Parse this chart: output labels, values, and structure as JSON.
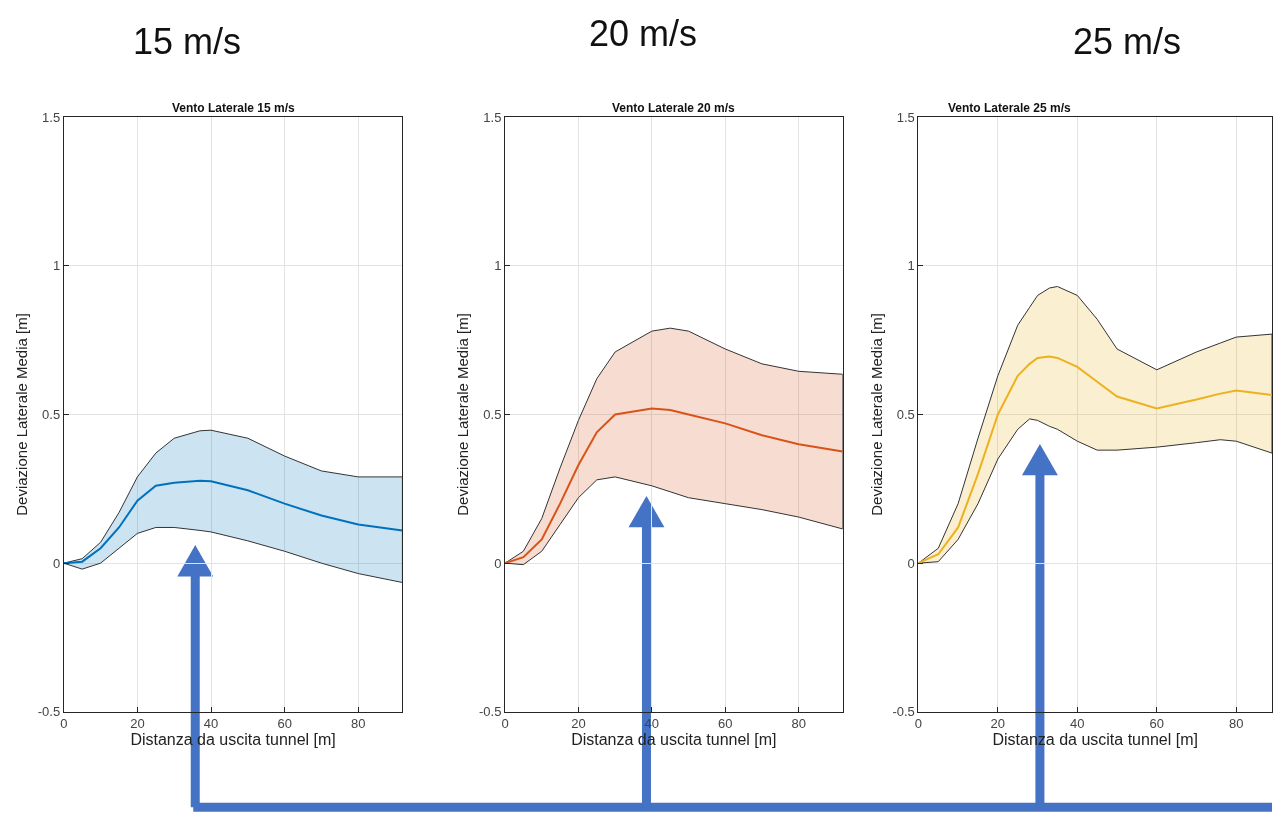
{
  "chart_data": [
    {
      "type": "line",
      "title": "Vento Laterale 15 m/s",
      "annotations": [
        "15 m/s"
      ],
      "xlabel": "Distanza da uscita tunnel [m]",
      "ylabel": "Deviazione Laterale Media [m]",
      "x": [
        0,
        5,
        10,
        15,
        20,
        25,
        30,
        37,
        40,
        50,
        60,
        70,
        80,
        92
      ],
      "series": [
        {
          "color": "#0072bd",
          "values": [
            0,
            0.005,
            0.05,
            0.12,
            0.21,
            0.26,
            0.27,
            0.277,
            0.275,
            0.245,
            0.2,
            0.16,
            0.13,
            0.11
          ],
          "upper": [
            0,
            0.015,
            0.07,
            0.17,
            0.29,
            0.37,
            0.42,
            0.445,
            0.447,
            0.42,
            0.36,
            0.31,
            0.29,
            0.29
          ],
          "lower": [
            0,
            -0.02,
            0.0,
            0.05,
            0.1,
            0.12,
            0.12,
            0.11,
            0.105,
            0.075,
            0.04,
            0.0,
            -0.035,
            -0.065
          ]
        }
      ],
      "xlim": [
        0,
        92
      ],
      "ylim": [
        -0.5,
        1.5
      ],
      "xticks": [
        0,
        20,
        40,
        60,
        80
      ],
      "yticks": [
        -0.5,
        0,
        0.5,
        1,
        1.5
      ],
      "grid": true
    },
    {
      "type": "line",
      "title": "Vento Laterale 20 m/s",
      "annotations": [
        "20 m/s"
      ],
      "xlabel": "Distanza da uscita tunnel [m]",
      "ylabel": "Deviazione Laterale Media [m]",
      "x": [
        0,
        5,
        10,
        15,
        20,
        25,
        30,
        40,
        45,
        50,
        60,
        70,
        80,
        92
      ],
      "series": [
        {
          "color": "#d95319",
          "values": [
            0,
            0.02,
            0.08,
            0.2,
            0.33,
            0.44,
            0.5,
            0.52,
            0.515,
            0.5,
            0.47,
            0.43,
            0.4,
            0.375
          ],
          "upper": [
            0,
            0.04,
            0.15,
            0.32,
            0.48,
            0.62,
            0.71,
            0.78,
            0.79,
            0.78,
            0.72,
            0.67,
            0.645,
            0.635
          ],
          "lower": [
            0,
            -0.005,
            0.04,
            0.13,
            0.22,
            0.28,
            0.29,
            0.26,
            0.24,
            0.22,
            0.2,
            0.18,
            0.155,
            0.115
          ]
        }
      ],
      "xlim": [
        0,
        92
      ],
      "ylim": [
        -0.5,
        1.5
      ],
      "xticks": [
        0,
        20,
        40,
        60,
        80
      ],
      "yticks": [
        -0.5,
        0,
        0.5,
        1,
        1.5
      ],
      "grid": true
    },
    {
      "type": "line",
      "title": "Vento Laterale 25 m/s",
      "annotations": [
        "25 m/s"
      ],
      "xlabel": "Distanza da uscita tunnel [m]",
      "ylabel": "Deviazione Laterale Media [m]",
      "x": [
        0,
        5,
        10,
        15,
        20,
        25,
        28,
        30,
        33,
        35,
        40,
        45,
        50,
        60,
        70,
        76,
        80,
        89
      ],
      "series": [
        {
          "color": "#edb120",
          "values": [
            0,
            0.03,
            0.12,
            0.3,
            0.5,
            0.63,
            0.67,
            0.69,
            0.695,
            0.69,
            0.66,
            0.61,
            0.56,
            0.52,
            0.55,
            0.57,
            0.58,
            0.565
          ],
          "upper": [
            0,
            0.05,
            0.2,
            0.42,
            0.63,
            0.8,
            0.86,
            0.9,
            0.925,
            0.93,
            0.9,
            0.82,
            0.72,
            0.65,
            0.71,
            0.74,
            0.76,
            0.77
          ],
          "lower": [
            0,
            0.005,
            0.08,
            0.2,
            0.35,
            0.45,
            0.485,
            0.48,
            0.46,
            0.45,
            0.41,
            0.38,
            0.38,
            0.39,
            0.405,
            0.415,
            0.41,
            0.37
          ]
        }
      ],
      "xlim": [
        0,
        89
      ],
      "ylim": [
        -0.5,
        1.5
      ],
      "xticks": [
        0,
        20,
        40,
        60,
        80
      ],
      "yticks": [
        -0.5,
        0,
        0.5,
        1,
        1.5
      ],
      "grid": true
    }
  ]
}
